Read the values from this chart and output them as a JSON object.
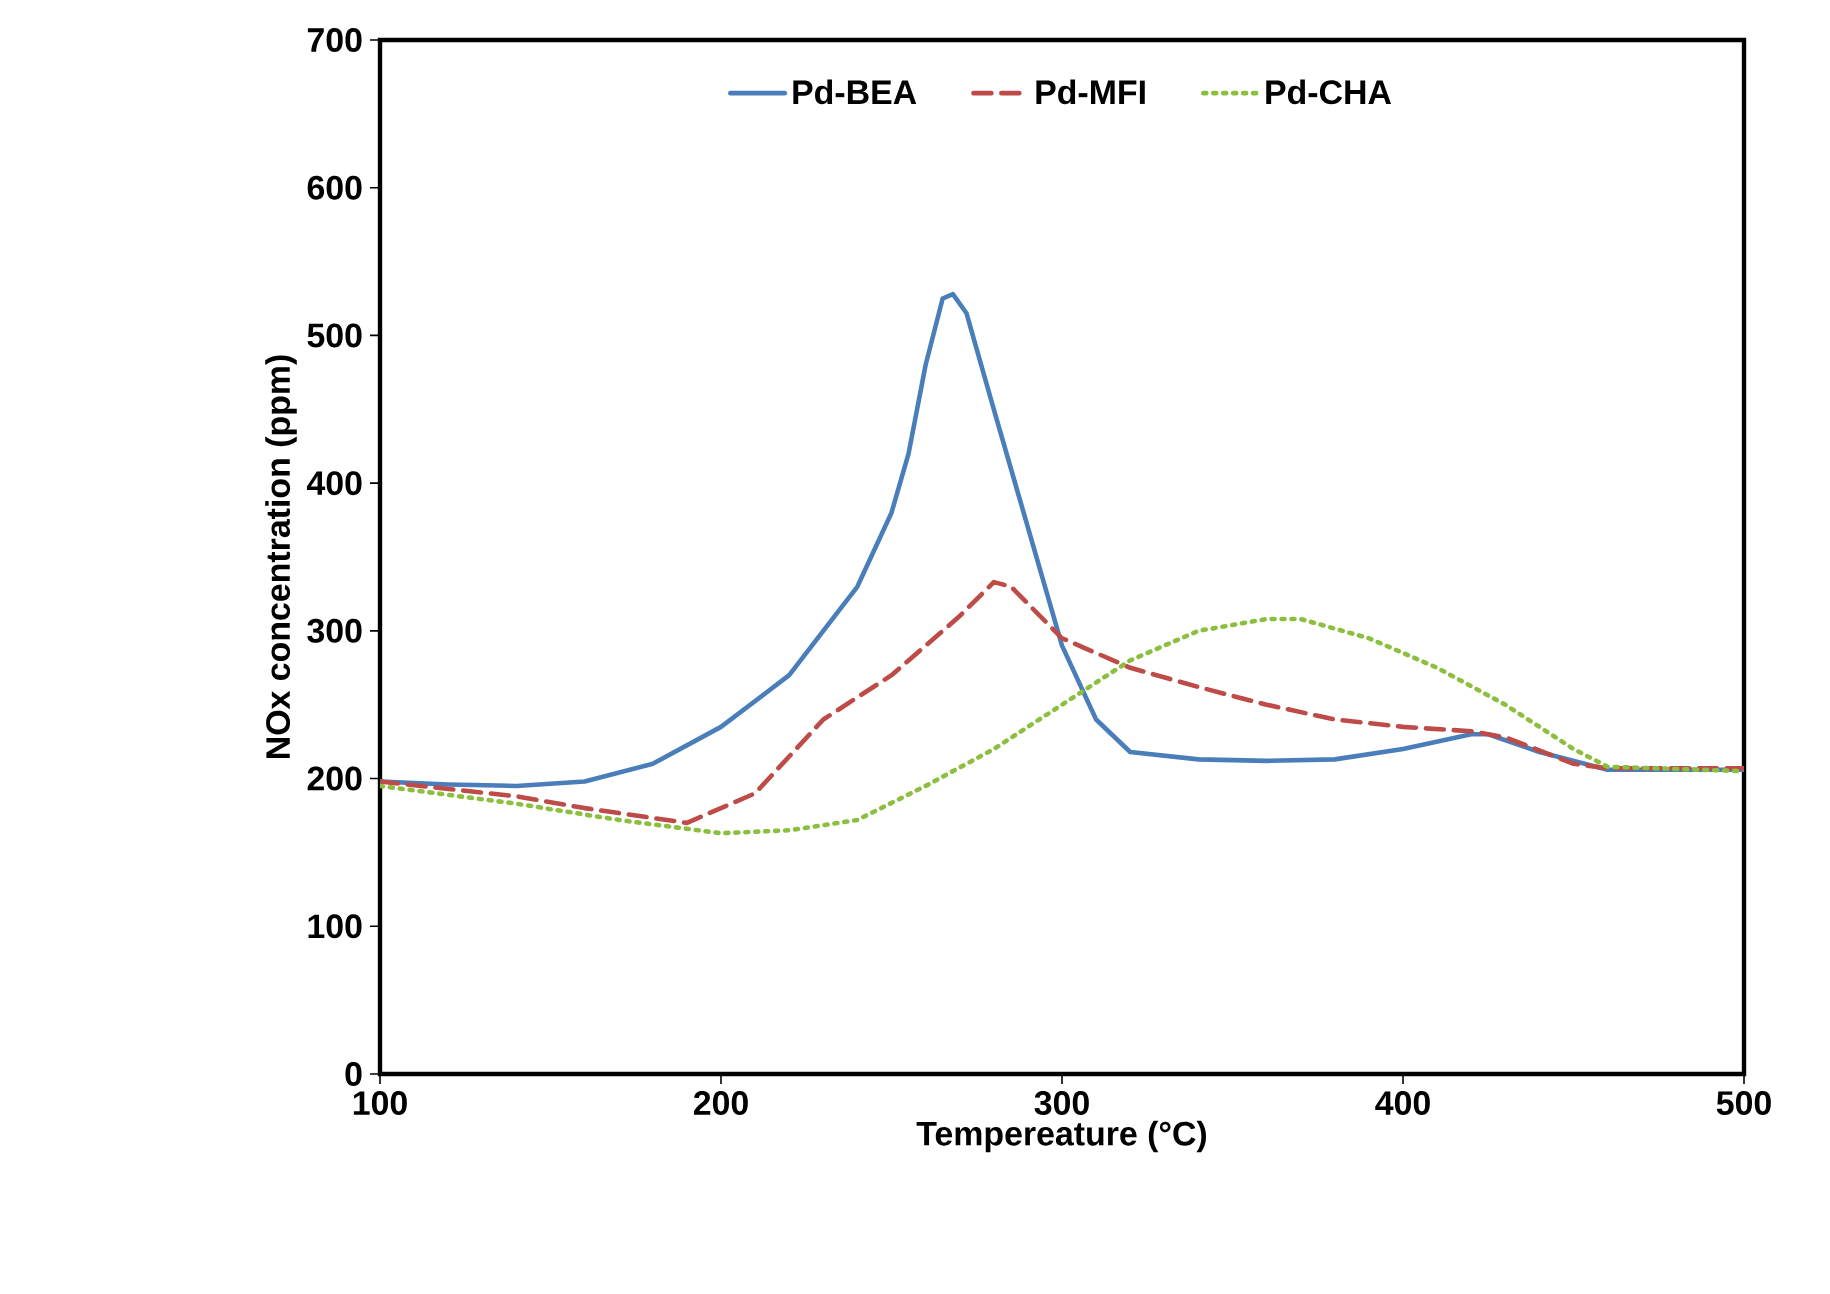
{
  "chart_data": {
    "type": "line",
    "xlabel": "Tempereature (°C)",
    "ylabel": "NOx concentration (ppm)",
    "xlim": [
      100,
      500
    ],
    "ylim": [
      0,
      700
    ],
    "xticks": [
      100,
      200,
      300,
      400,
      500
    ],
    "yticks": [
      0,
      100,
      200,
      300,
      400,
      500,
      600,
      700
    ],
    "legend": "top",
    "grid": false,
    "marker": "none",
    "series": [
      {
        "name": "Pd-BEA",
        "color": "#4a7ebb",
        "line_style": "solid",
        "x": [
          100,
          120,
          140,
          160,
          180,
          200,
          220,
          240,
          250,
          255,
          260,
          265,
          268,
          272,
          280,
          290,
          300,
          310,
          320,
          340,
          360,
          380,
          400,
          420,
          425,
          440,
          460,
          480,
          500
        ],
        "values": [
          198,
          196,
          195,
          198,
          210,
          235,
          270,
          330,
          380,
          420,
          480,
          525,
          528,
          515,
          450,
          370,
          290,
          240,
          218,
          213,
          212,
          213,
          220,
          230,
          230,
          218,
          206,
          206,
          206
        ]
      },
      {
        "name": "Pd-MFI",
        "color": "#be4b48",
        "line_style": "dashed",
        "x": [
          100,
          140,
          160,
          190,
          210,
          230,
          250,
          270,
          280,
          285,
          300,
          320,
          340,
          360,
          380,
          400,
          420,
          430,
          450,
          460,
          500
        ],
        "values": [
          198,
          188,
          180,
          170,
          190,
          240,
          270,
          310,
          333,
          330,
          295,
          275,
          262,
          250,
          240,
          235,
          232,
          228,
          210,
          207,
          207
        ]
      },
      {
        "name": "Pd-CHA",
        "color": "#8cbf3f",
        "line_style": "dotted",
        "x": [
          100,
          140,
          170,
          200,
          220,
          240,
          260,
          280,
          300,
          320,
          340,
          360,
          370,
          390,
          410,
          430,
          450,
          460,
          500
        ],
        "values": [
          195,
          183,
          172,
          163,
          165,
          172,
          195,
          220,
          250,
          280,
          300,
          308,
          308,
          295,
          275,
          250,
          220,
          208,
          205
        ]
      }
    ]
  }
}
